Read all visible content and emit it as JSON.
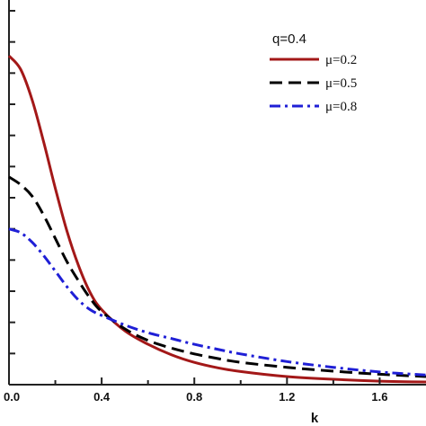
{
  "chart_data": {
    "type": "line",
    "title": "",
    "xlabel": "k",
    "ylabel": "",
    "xlim": [
      0.0,
      1.8
    ],
    "ylim": [
      0.0,
      1.0
    ],
    "x_ticks": [
      "0.0",
      "0.4",
      "0.8",
      "1.2",
      "1.6"
    ],
    "y_tick_count": 12,
    "grid": false,
    "legend": {
      "title": "q=0.4",
      "placement": "top-right"
    },
    "series": [
      {
        "name": "μ=0.2",
        "color": "#a31818",
        "style": "solid",
        "x": [
          0.0,
          0.05,
          0.1,
          0.15,
          0.2,
          0.25,
          0.3,
          0.35,
          0.4,
          0.5,
          0.6,
          0.7,
          0.8,
          0.9,
          1.0,
          1.2,
          1.4,
          1.6,
          1.8
        ],
        "y": [
          0.855,
          0.82,
          0.74,
          0.63,
          0.51,
          0.4,
          0.31,
          0.24,
          0.195,
          0.14,
          0.105,
          0.078,
          0.058,
          0.044,
          0.034,
          0.021,
          0.014,
          0.009,
          0.007
        ]
      },
      {
        "name": "μ=0.5",
        "color": "#000000",
        "style": "dashed",
        "x": [
          0.0,
          0.05,
          0.1,
          0.15,
          0.2,
          0.25,
          0.3,
          0.35,
          0.4,
          0.5,
          0.6,
          0.7,
          0.8,
          0.9,
          1.0,
          1.2,
          1.4,
          1.6,
          1.8
        ],
        "y": [
          0.54,
          0.52,
          0.49,
          0.44,
          0.38,
          0.32,
          0.27,
          0.225,
          0.19,
          0.145,
          0.115,
          0.095,
          0.08,
          0.068,
          0.058,
          0.045,
          0.035,
          0.027,
          0.021
        ]
      },
      {
        "name": "μ=0.8",
        "color": "#1f1fd6",
        "style": "dashdot",
        "x": [
          0.0,
          0.05,
          0.1,
          0.15,
          0.2,
          0.25,
          0.3,
          0.35,
          0.4,
          0.5,
          0.6,
          0.7,
          0.8,
          0.9,
          1.0,
          1.2,
          1.4,
          1.6,
          1.8
        ],
        "y": [
          0.405,
          0.395,
          0.37,
          0.335,
          0.295,
          0.255,
          0.22,
          0.195,
          0.18,
          0.155,
          0.135,
          0.12,
          0.105,
          0.092,
          0.08,
          0.06,
          0.045,
          0.033,
          0.025
        ]
      }
    ]
  }
}
